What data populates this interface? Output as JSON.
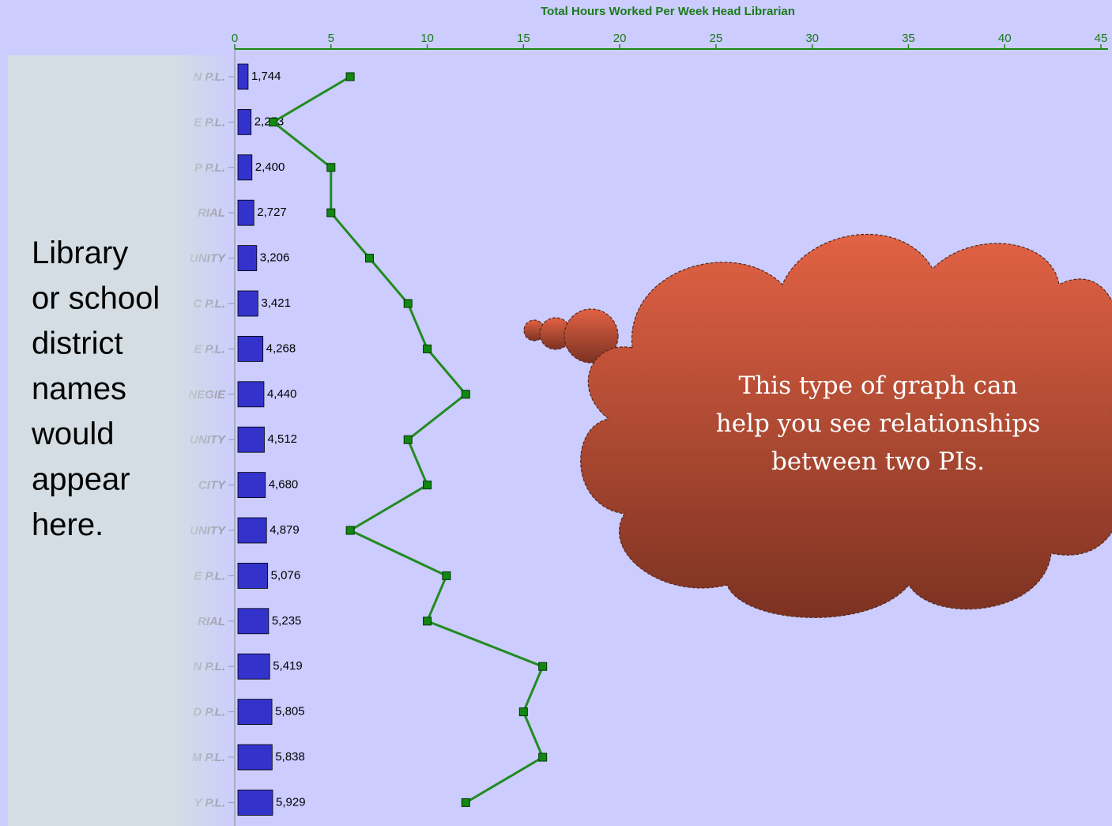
{
  "chart_data": {
    "type": "bar",
    "orientation": "horizontal",
    "title": "Total Hours Worked Per Week Head Librarian",
    "categories": [
      "N P.L.",
      "E P.L.",
      "P P.L.",
      "RIAL",
      "UNITY",
      "C P.L.",
      "E P.L.",
      "NEGIE",
      "UNITY",
      "CITY",
      "UNITY",
      "E P.L.",
      "RIAL",
      "N P.L.",
      "D P.L.",
      "M P.L.",
      "Y P.L."
    ],
    "series": [
      {
        "type": "bar",
        "color": "#3333cc",
        "values": [
          1744,
          2253,
          2400,
          2727,
          3206,
          3421,
          4268,
          4440,
          4512,
          4680,
          4879,
          5076,
          5235,
          5419,
          5805,
          5838,
          5929
        ],
        "value_labels": [
          "1,744",
          "2,253",
          "2,400",
          "2,727",
          "3,206",
          "3,421",
          "4,268",
          "4,440",
          "4,512",
          "4,680",
          "4,879",
          "5,076",
          "5,235",
          "5,419",
          "5,805",
          "5,838",
          "5,929"
        ]
      },
      {
        "type": "line",
        "axis": "x",
        "color": "#228b22",
        "values": [
          6,
          2,
          5,
          5,
          7,
          9,
          10,
          12,
          9,
          10,
          6,
          11,
          10,
          16,
          15,
          16,
          12
        ]
      }
    ],
    "xlim": [
      0,
      45
    ],
    "xticks": [
      0,
      5,
      10,
      15,
      20,
      25,
      30,
      35,
      40,
      45
    ]
  },
  "note": {
    "lines": [
      "Library",
      "or school",
      "district",
      "names",
      "would",
      "appear",
      "here."
    ]
  },
  "callout": {
    "lines": [
      "This type of graph can",
      "help you see relationships",
      "between two PIs."
    ]
  }
}
